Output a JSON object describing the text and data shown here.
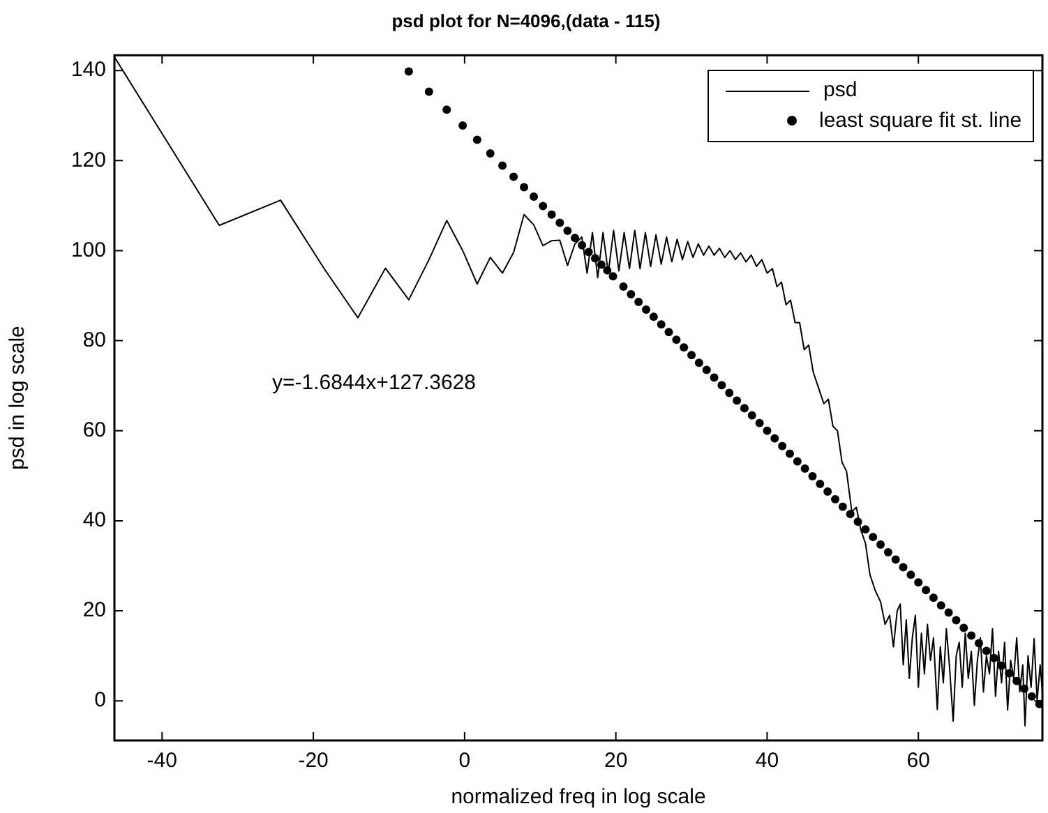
{
  "chart_data": {
    "type": "line",
    "title": "psd plot for N=4096,(data - 115)",
    "xlabel": "normalized freq in log scale",
    "ylabel": "psd in log scale",
    "xlim": [
      -46.3,
      76.4
    ],
    "xticks": [
      -40,
      -20,
      0,
      20,
      40,
      60
    ],
    "ylim": [
      -8.8,
      143.4
    ],
    "yticks": [
      0,
      20,
      40,
      60,
      80,
      100,
      120,
      140
    ],
    "legend": "top right",
    "annotations": [
      "y=-1.6844x+127.3628"
    ],
    "series": [
      {
        "name": "psd",
        "type": "line",
        "color": "#000000",
        "marker": "none",
        "x": [
          -46.3,
          -32.44,
          -24.33,
          -18.57,
          -14.11,
          -10.47,
          -7.38,
          -4.71,
          -2.36,
          -0.25,
          1.66,
          3.4,
          5.0,
          6.48,
          7.86,
          9.15,
          10.36,
          11.51,
          12.59,
          13.61,
          14.59,
          15.5,
          16.2,
          16.9,
          17.6,
          18.3,
          19.0,
          19.7,
          20.4,
          21.1,
          21.8,
          22.5,
          23.2,
          23.9,
          24.6,
          25.3,
          26.0,
          26.7,
          27.4,
          28.1,
          28.8,
          29.5,
          30.2,
          30.9,
          31.6,
          32.3,
          33.0,
          33.7,
          34.4,
          35.1,
          35.8,
          36.5,
          37.2,
          37.9,
          38.6,
          39.3,
          40.0,
          40.7,
          41.3,
          41.9,
          42.5,
          43.1,
          43.7,
          44.3,
          44.9,
          45.5,
          46.1,
          46.9,
          47.5,
          48.1,
          48.7,
          49.3,
          49.9,
          50.5,
          51.2,
          51.8,
          52.4,
          53.0,
          53.6,
          54.3,
          55.0,
          55.6,
          56.2,
          56.7,
          57.2,
          57.6,
          58.0,
          58.4,
          58.8,
          59.2,
          59.6,
          60.0,
          60.4,
          60.8,
          61.2,
          61.6,
          62.0,
          62.5,
          62.9,
          63.3,
          63.7,
          64.1,
          64.6,
          65.0,
          65.4,
          65.8,
          66.2,
          66.6,
          67.0,
          67.4,
          67.8,
          68.2,
          68.6,
          69.0,
          69.4,
          69.8,
          70.2,
          70.6,
          71.0,
          71.4,
          71.8,
          72.2,
          72.6,
          73.0,
          73.4,
          73.8,
          74.1,
          74.5,
          74.9,
          75.3,
          75.7,
          76.1,
          76.4
        ],
        "values": [
          143,
          105.6,
          111.2,
          96,
          85.1,
          96.1,
          89.1,
          98,
          106.7,
          100,
          92.6,
          98.5,
          95,
          99.6,
          108,
          105.7,
          101.1,
          102.2,
          102.3,
          96.7,
          101.5,
          103,
          95,
          104,
          94,
          104,
          95,
          104.5,
          95.5,
          104,
          96,
          104.5,
          96,
          104,
          96.5,
          103.5,
          97,
          103,
          97.5,
          102.5,
          98,
          102,
          98.5,
          101.5,
          99,
          101,
          99,
          100.5,
          98.5,
          100,
          98,
          99.5,
          97.5,
          99,
          96.5,
          98,
          95,
          96,
          92,
          93,
          88,
          89,
          84,
          84,
          78,
          79,
          73,
          69,
          66,
          67,
          61,
          60,
          53,
          51,
          42,
          43,
          37.9,
          35,
          28,
          24.5,
          22,
          17,
          19,
          12,
          20,
          21.5,
          8,
          18,
          5,
          14,
          19,
          3,
          15,
          6,
          17,
          9,
          14,
          -1.9,
          12,
          4,
          16,
          8,
          -4.5,
          10,
          13,
          3,
          15,
          5,
          11,
          -1,
          9,
          14,
          2,
          10,
          6,
          16,
          1,
          11,
          4,
          13,
          -2,
          9,
          5,
          14,
          2,
          8,
          -5.5,
          10,
          3,
          13.8,
          0,
          8,
          2
        ]
      },
      {
        "name": "least square fit st. line",
        "type": "scatter",
        "color": "#000000",
        "marker": "circle",
        "x": [
          -7.38,
          -4.71,
          -2.36,
          -0.25,
          1.66,
          3.4,
          5.0,
          6.48,
          7.86,
          9.15,
          10.36,
          11.51,
          12.59,
          13.61,
          14.59,
          15.52,
          16.41,
          17.26,
          18.08,
          18.86,
          19.62,
          21,
          22,
          23,
          24,
          25,
          26,
          27,
          28,
          29,
          30,
          31,
          32,
          33,
          34,
          35,
          36,
          37,
          38,
          39,
          40,
          41,
          42,
          43,
          44,
          45,
          46,
          47,
          48,
          49,
          50,
          51,
          52,
          53,
          54,
          55,
          56,
          57,
          58,
          59,
          60,
          61,
          62,
          63,
          64,
          65,
          66,
          67,
          68,
          69,
          70,
          71,
          72,
          73,
          74,
          75,
          76
        ],
        "values": [
          139.8,
          135.3,
          131.3,
          127.8,
          124.6,
          121.6,
          118.9,
          116.4,
          114.1,
          112.0,
          109.9,
          108.0,
          106.2,
          104.4,
          102.8,
          101.2,
          99.7,
          98.3,
          96.9,
          95.6,
          94.3,
          92.0,
          90.3,
          88.6,
          86.9,
          85.3,
          83.6,
          81.9,
          80.2,
          78.5,
          76.8,
          75.1,
          73.5,
          71.8,
          70.1,
          68.4,
          66.7,
          65.0,
          63.4,
          61.7,
          60.0,
          58.3,
          56.6,
          54.9,
          53.2,
          51.6,
          49.9,
          48.2,
          46.5,
          44.8,
          43.1,
          41.5,
          39.8,
          38.1,
          36.4,
          34.7,
          33.0,
          31.4,
          29.7,
          28.0,
          26.3,
          24.6,
          22.9,
          21.2,
          19.6,
          17.9,
          16.2,
          14.5,
          12.8,
          11.1,
          9.5,
          7.8,
          6.1,
          4.4,
          2.7,
          1.0,
          -0.7
        ]
      }
    ]
  }
}
